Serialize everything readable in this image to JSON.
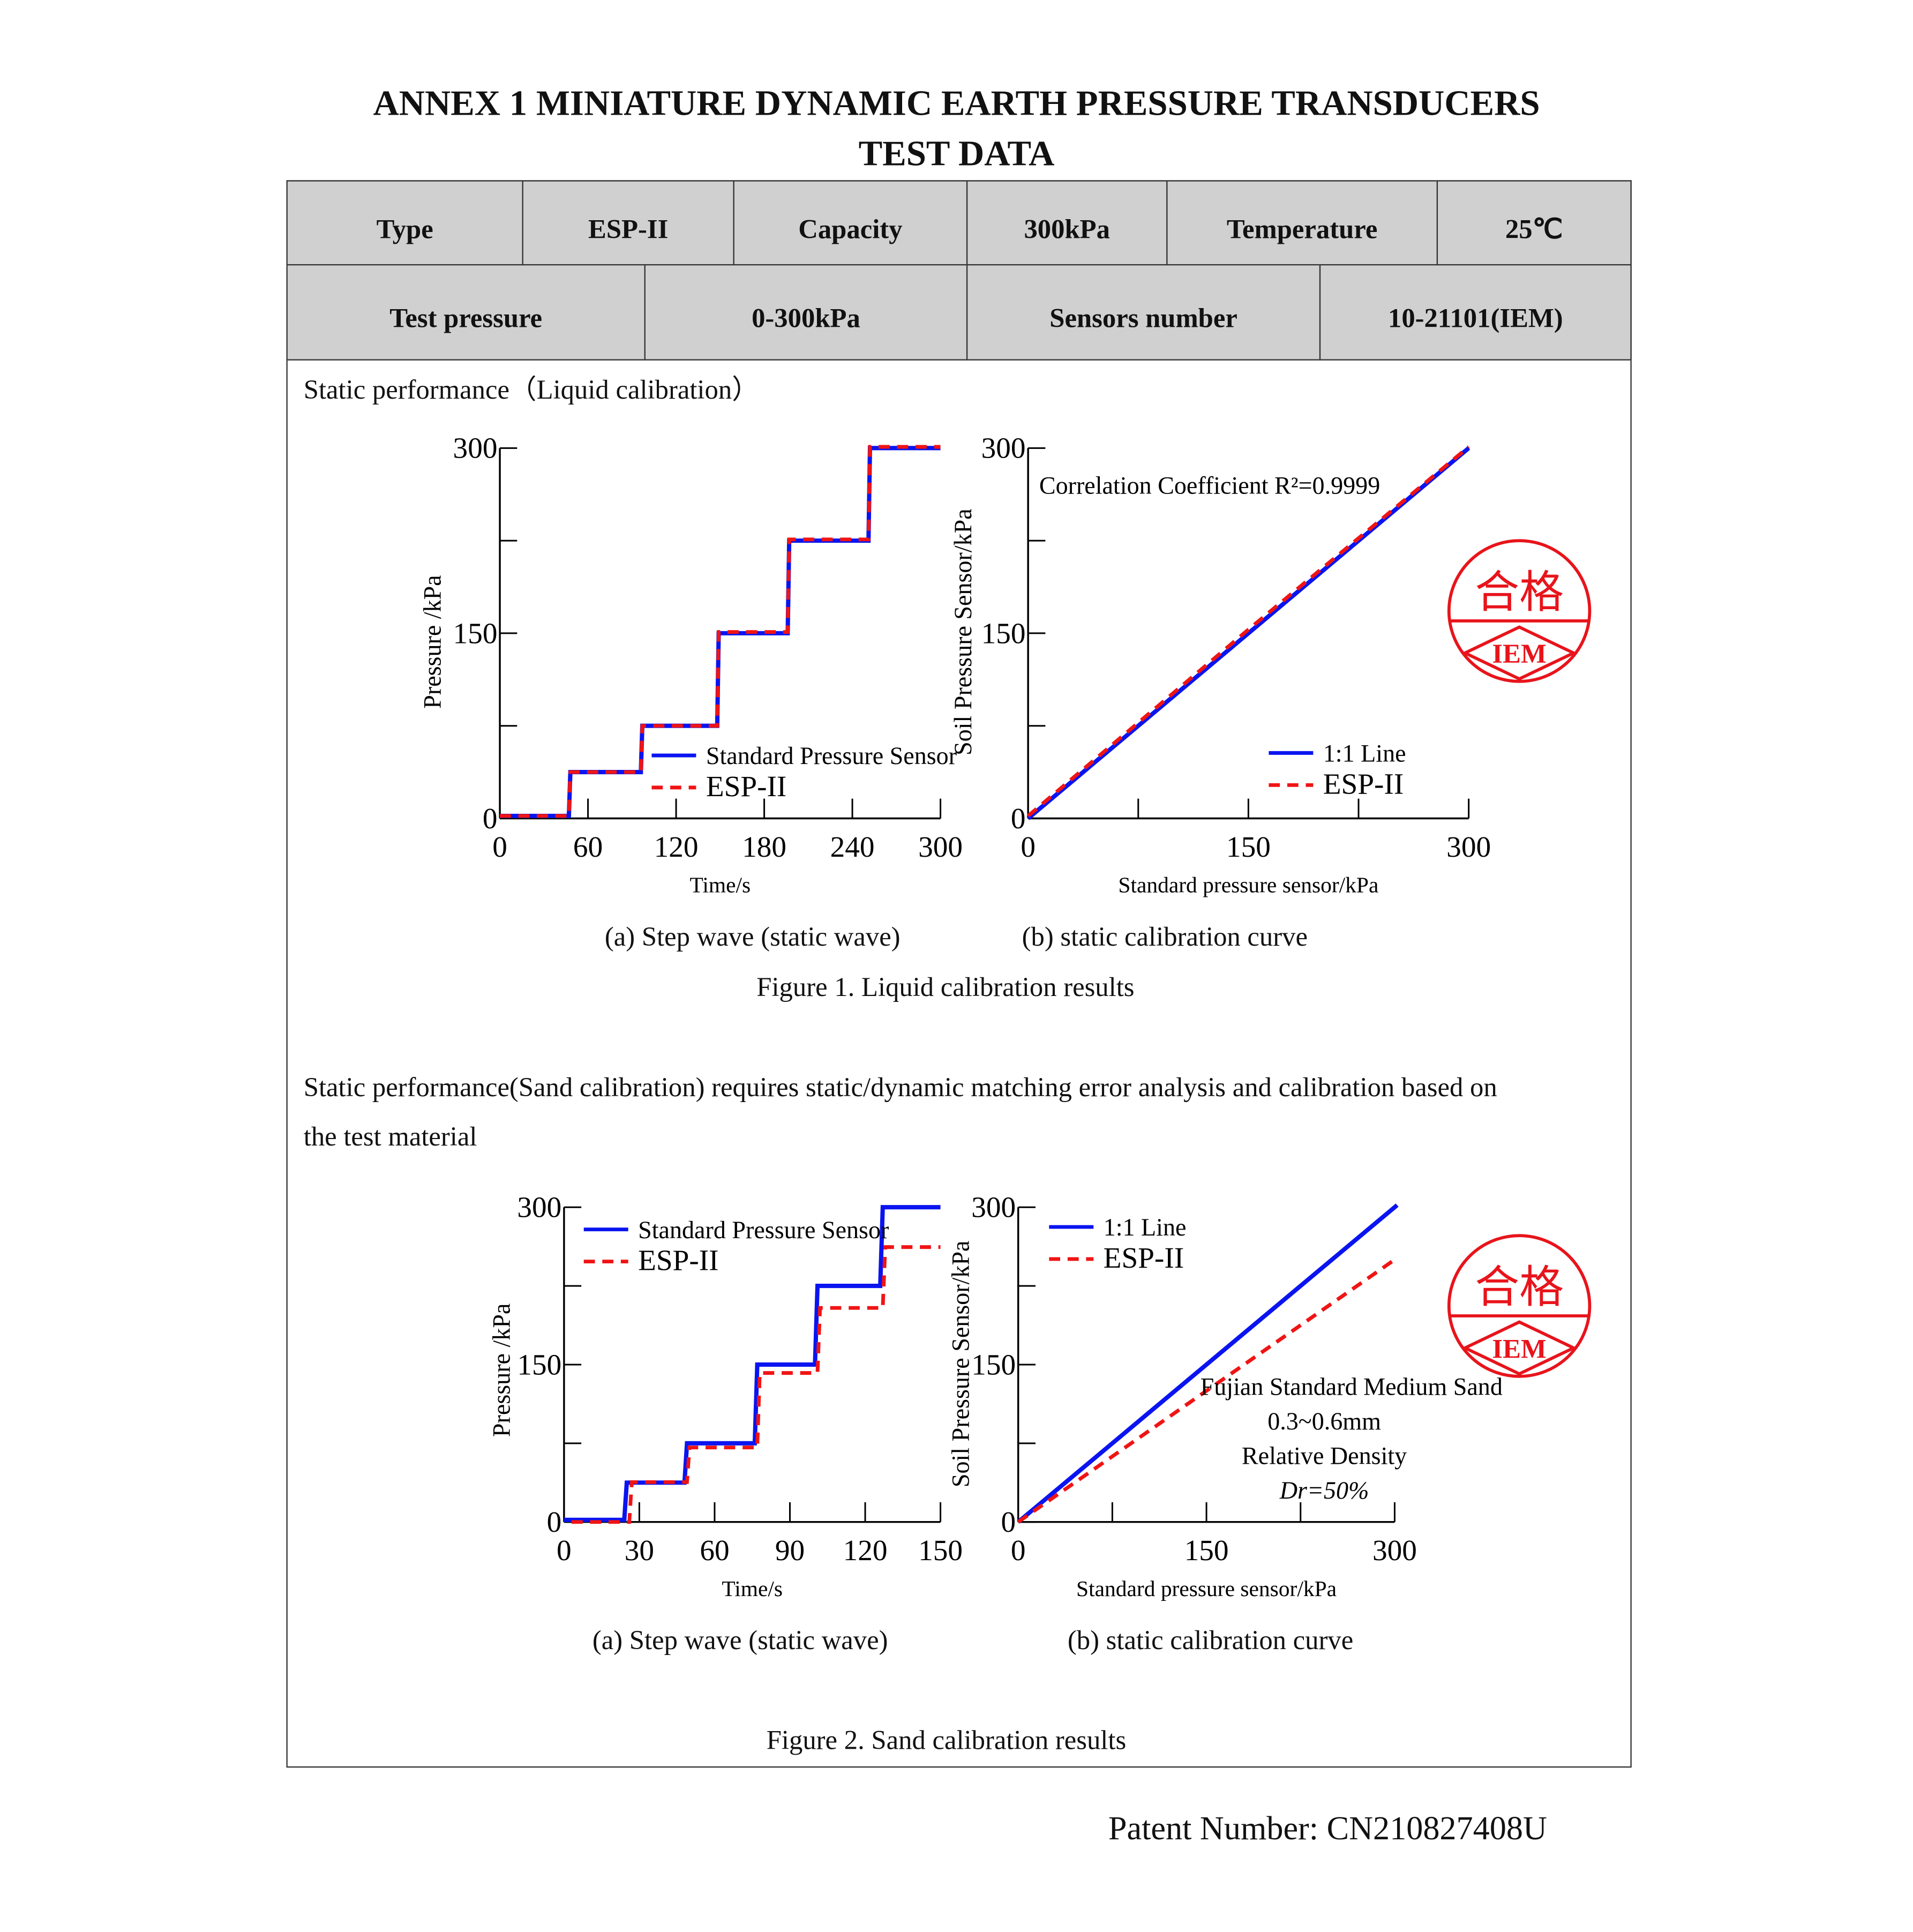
{
  "header": {
    "title_line1": "ANNEX 1 MINIATURE DYNAMIC EARTH PRESSURE TRANSDUCERS",
    "title_line2": "TEST DATA"
  },
  "spec_table": {
    "row1": [
      "Type",
      "ESP-II",
      "Capacity",
      "300kPa",
      "Temperature",
      "25℃"
    ],
    "row2": [
      "Test pressure",
      "0-300kPa",
      "Sensors number",
      "10-21101(IEM)"
    ]
  },
  "section1": {
    "heading": "Static performance（Liquid calibration）",
    "caption_a": "(a) Step wave (static wave)",
    "caption_b": "(b) static calibration curve",
    "figure_caption": "Figure 1. Liquid calibration results"
  },
  "section2": {
    "heading_line1": "Static performance(Sand calibration) requires static/dynamic matching error analysis and calibration based on",
    "heading_line2": "the test material",
    "caption_a": "(a) Step wave (static wave)",
    "caption_b": "(b) static calibration curve",
    "figure_caption": "Figure 2. Sand calibration results"
  },
  "stamp": {
    "text_top": "合格",
    "text_bottom": "IEM",
    "color": "#e8141b"
  },
  "footer": {
    "patent": "Patent Number: CN210827408U"
  },
  "colors": {
    "standard": "#0a14f0",
    "esp": "#f01414",
    "header_bg": "#d0d0d0"
  },
  "chart_data": [
    {
      "id": "fig1a",
      "type": "line",
      "xlabel": "Time/s",
      "ylabel": "Pressure /kPa",
      "xlim": [
        0,
        300
      ],
      "ylim": [
        0,
        300
      ],
      "xticks": [
        0,
        60,
        120,
        180,
        240,
        300
      ],
      "yticks": [
        0,
        150,
        300
      ],
      "legend": [
        "Standard Pressure Sensor",
        "ESP-II"
      ],
      "legend_position": "bottom-right",
      "series": [
        {
          "name": "Standard Pressure Sensor",
          "x": [
            0,
            47,
            48,
            96,
            97,
            148,
            149,
            196,
            197,
            251,
            252,
            300
          ],
          "y": [
            2,
            2,
            37.5,
            37.5,
            75,
            75,
            150,
            150,
            225,
            225,
            300,
            300
          ]
        },
        {
          "name": "ESP-II",
          "x": [
            0,
            47,
            48,
            96,
            97,
            148,
            149,
            196,
            197,
            251,
            252,
            300
          ],
          "y": [
            2,
            2,
            37.5,
            37.5,
            75,
            75,
            151,
            151,
            226,
            226,
            301,
            301
          ]
        }
      ]
    },
    {
      "id": "fig1b",
      "type": "line",
      "xlabel": "Standard pressure sensor/kPa",
      "ylabel": "Soil Pressure Sensor/kPa",
      "xlim": [
        0,
        300
      ],
      "ylim": [
        0,
        300
      ],
      "xticks": [
        0,
        150,
        300
      ],
      "yticks": [
        0,
        150,
        300
      ],
      "annotation": "Correlation Coefficient R²=0.9999",
      "legend": [
        "1:1 Line",
        "ESP-II"
      ],
      "legend_position": "bottom-right",
      "series": [
        {
          "name": "1:1 Line",
          "x": [
            0,
            300
          ],
          "y": [
            0,
            300
          ]
        },
        {
          "name": "ESP-II",
          "x": [
            0,
            150,
            300
          ],
          "y": [
            2,
            153,
            301
          ]
        }
      ]
    },
    {
      "id": "fig2a",
      "type": "line",
      "xlabel": "Time/s",
      "ylabel": "Pressure /kPa",
      "xlim": [
        0,
        150
      ],
      "ylim": [
        0,
        300
      ],
      "xticks": [
        0,
        30,
        60,
        90,
        120,
        150
      ],
      "yticks": [
        0,
        150,
        300
      ],
      "legend": [
        "Standard Pressure Sensor",
        "ESP-II"
      ],
      "legend_position": "top-left",
      "series": [
        {
          "name": "Standard Pressure Sensor",
          "x": [
            0,
            24,
            25,
            48,
            49,
            76,
            77,
            100,
            101,
            126,
            127,
            150
          ],
          "y": [
            2,
            2,
            37.5,
            37.5,
            75,
            75,
            150,
            150,
            225,
            225,
            300,
            300
          ]
        },
        {
          "name": "ESP-II",
          "x": [
            3,
            26,
            27,
            49,
            50,
            77,
            78,
            101,
            102,
            127,
            128,
            150
          ],
          "y": [
            0,
            0,
            38,
            38,
            71,
            71,
            142,
            142,
            204,
            204,
            262,
            262
          ]
        }
      ]
    },
    {
      "id": "fig2b",
      "type": "line",
      "xlabel": "Standard pressure sensor/kPa",
      "ylabel": "Soil Pressure Sensor/kPa",
      "xlim": [
        0,
        300
      ],
      "ylim": [
        0,
        300
      ],
      "xticks": [
        0,
        150,
        300
      ],
      "yticks": [
        0,
        150,
        300
      ],
      "annotation_lines": [
        "Fujian Standard Medium Sand",
        "0.3~0.6mm",
        "Relative Density",
        "Dr=50%"
      ],
      "legend": [
        "1:1 Line",
        "ESP-II"
      ],
      "legend_position": "top-left",
      "series": [
        {
          "name": "1:1 Line",
          "x": [
            0,
            302
          ],
          "y": [
            0,
            302
          ]
        },
        {
          "name": "ESP-II",
          "x": [
            0,
            300
          ],
          "y": [
            0,
            250
          ]
        }
      ]
    }
  ]
}
